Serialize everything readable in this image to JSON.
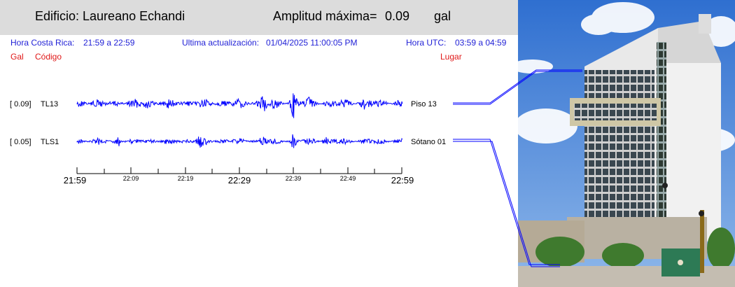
{
  "header": {
    "building_label": "Edificio: Laureano Echandi",
    "amplitude_label": "Amplitud máxima=",
    "amplitude_value": "0.09",
    "amplitude_unit": "gal"
  },
  "info": {
    "cr_time_label": "Hora Costa Rica:",
    "cr_time_range": "21:59 a 22:59",
    "update_label": "Ultima actualización:",
    "update_value": "01/04/2025 11:00:05 PM",
    "utc_label": "Hora UTC:",
    "utc_range": "03:59 a 04:59"
  },
  "columns": {
    "gal": "Gal",
    "code": "Código",
    "place": "Lugar"
  },
  "channels": [
    {
      "amp": "[   0.09]",
      "code": "TL13",
      "place": "Piso 13",
      "color": "#0000ff"
    },
    {
      "amp": "[   0.05]",
      "code": "TLS1",
      "place": "Sótano 01",
      "color": "#0000ff"
    }
  ],
  "axis": {
    "major": [
      "21:59",
      "22:29",
      "22:59"
    ],
    "minor": [
      "22:09",
      "22:19",
      "22:39",
      "22:49"
    ]
  },
  "colors": {
    "trace": "#0000ff",
    "info_text": "#1f1fd6",
    "red_text": "#e01818",
    "header_bg": "#dcdcdc"
  }
}
